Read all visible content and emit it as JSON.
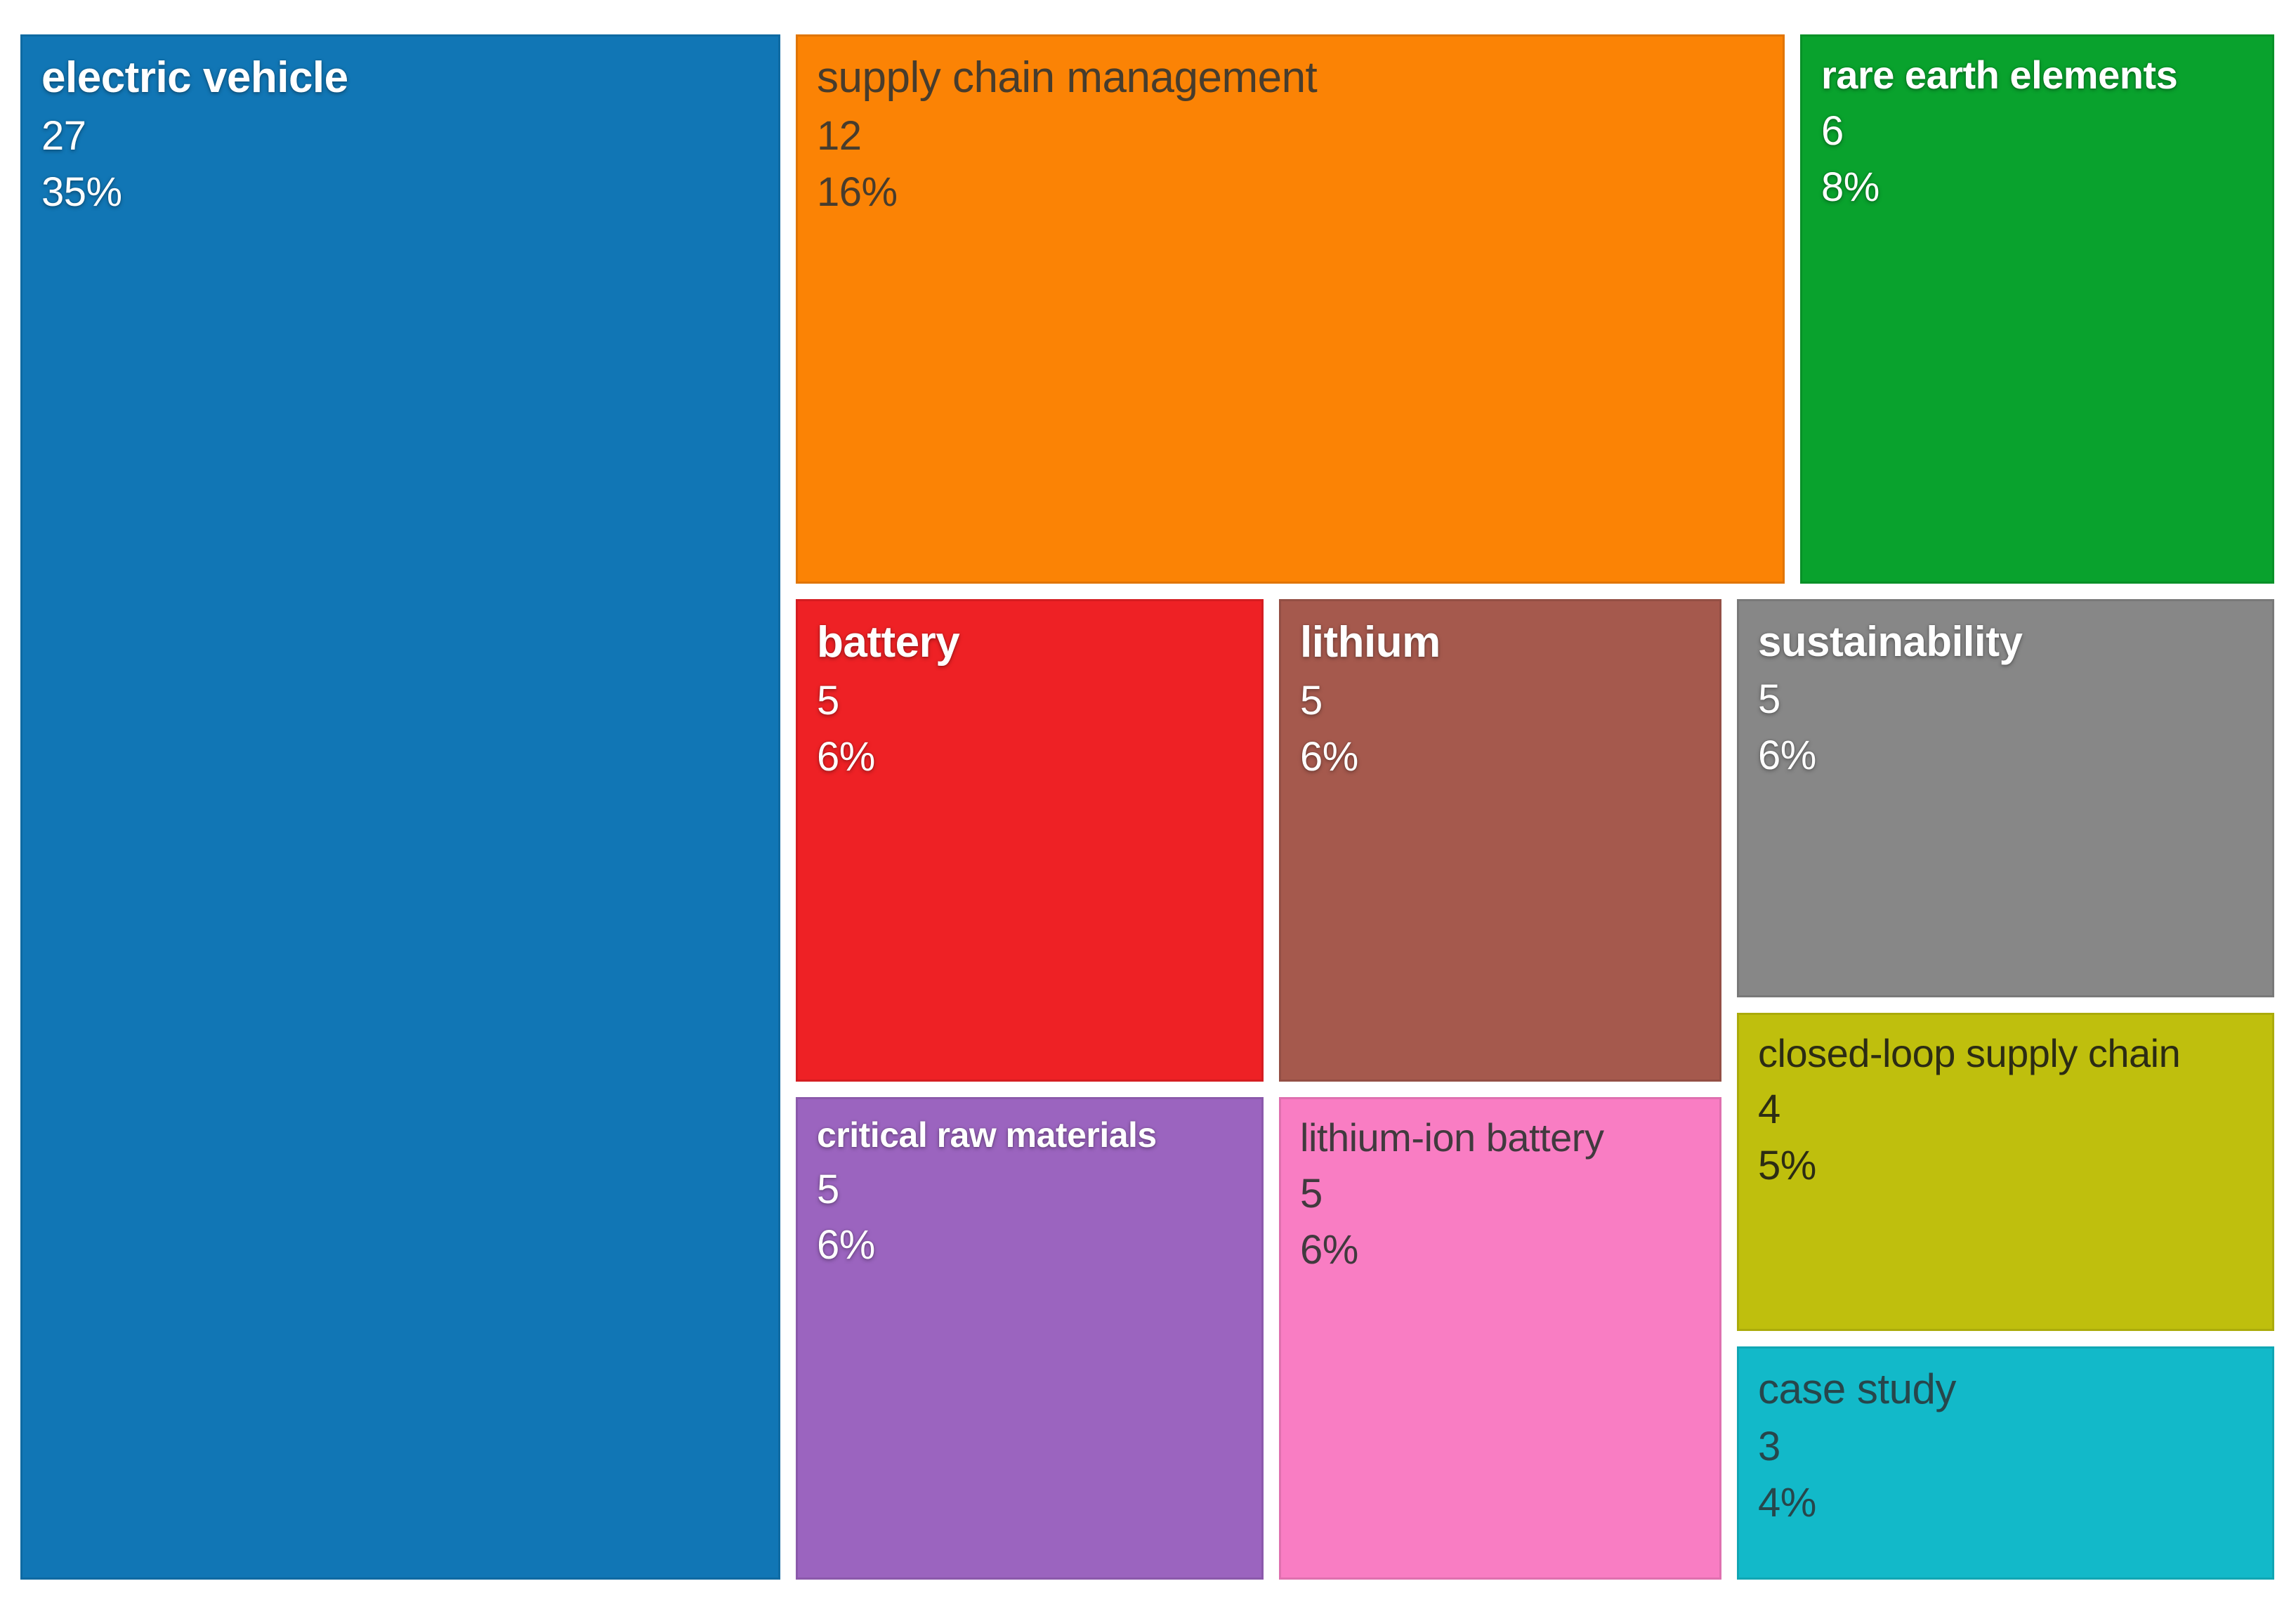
{
  "chart_data": {
    "type": "treemap",
    "title": "",
    "background": "#ffffff",
    "gutter_color": "#ffffff",
    "total_value": 77,
    "items": [
      {
        "label": "electric vehicle",
        "value": 27,
        "percent": "35%",
        "color": "#1176b5",
        "text_color": "#ffffff"
      },
      {
        "label": "supply chain management",
        "value": 12,
        "percent": "16%",
        "color": "#fb8305",
        "text_color": "#473c2d"
      },
      {
        "label": "rare earth elements",
        "value": 6,
        "percent": "8%",
        "color": "#09a22d",
        "text_color": "#ffffff"
      },
      {
        "label": "battery",
        "value": 5,
        "percent": "6%",
        "color": "#ee2125",
        "text_color": "#ffffff"
      },
      {
        "label": "lithium",
        "value": 5,
        "percent": "6%",
        "color": "#a5594d",
        "text_color": "#ffffff"
      },
      {
        "label": "sustainability",
        "value": 5,
        "percent": "6%",
        "color": "#878787",
        "text_color": "#ffffff"
      },
      {
        "label": "critical raw materials",
        "value": 5,
        "percent": "6%",
        "color": "#9b64bf",
        "text_color": "#ffffff"
      },
      {
        "label": "lithium-ion battery",
        "value": 5,
        "percent": "6%",
        "color": "#f97dc3",
        "text_color": "#413a3e"
      },
      {
        "label": "closed-loop supply chain",
        "value": 4,
        "percent": "5%",
        "color": "#bfbf0d",
        "text_color": "#2c2c14"
      },
      {
        "label": "case study",
        "value": 3,
        "percent": "4%",
        "color": "#12b9c9",
        "text_color": "#27464b"
      }
    ]
  }
}
